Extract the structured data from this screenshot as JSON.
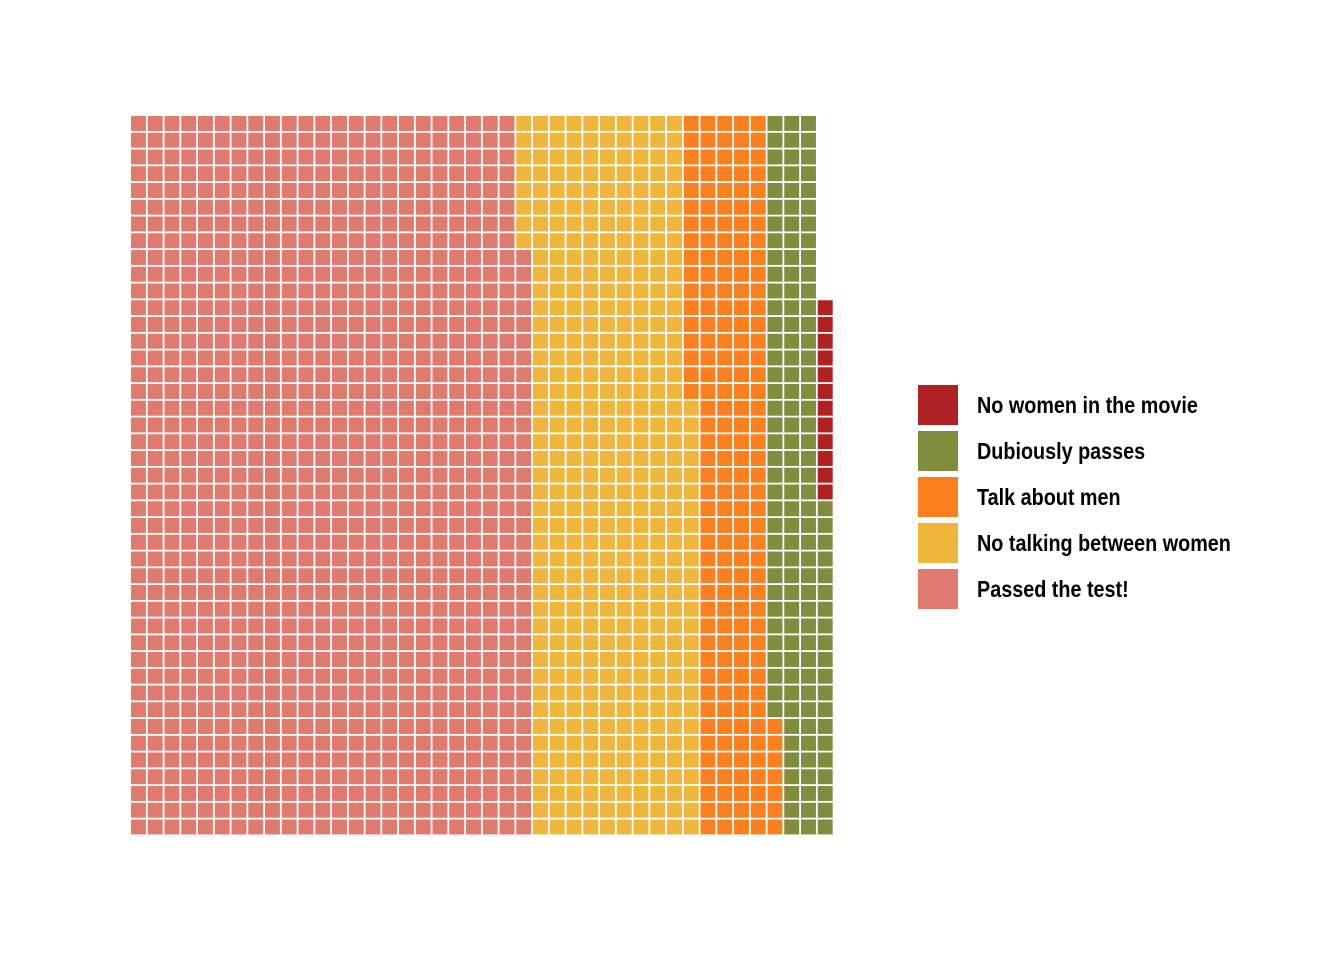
{
  "chart_data": {
    "type": "waffle",
    "rows": 43,
    "columns": 42,
    "fill_order": "column-major, filled from bottom row upward, columns left to right",
    "categories": [
      "Passed the test!",
      "No talking between women",
      "Talk about men",
      "Dubiously passes",
      "No women in the movie"
    ],
    "series": [
      {
        "name": "Passed the test!",
        "value": 1024,
        "color": "#e07a6e"
      },
      {
        "name": "No talking between women",
        "value": 421,
        "color": "#f0b63c"
      },
      {
        "name": "Talk about men",
        "value": 196,
        "color": "#fa7f1e"
      },
      {
        "name": "Dubiously passes",
        "value": 142,
        "color": "#808d3e"
      },
      {
        "name": "No women in the movie",
        "value": 12,
        "color": "#ae2223"
      }
    ],
    "legend": {
      "position": "right",
      "order": [
        "No women in the movie",
        "Dubiously passes",
        "Talk about men",
        "No talking between women",
        "Passed the test!"
      ]
    },
    "title": "",
    "xlabel": "",
    "ylabel": ""
  }
}
